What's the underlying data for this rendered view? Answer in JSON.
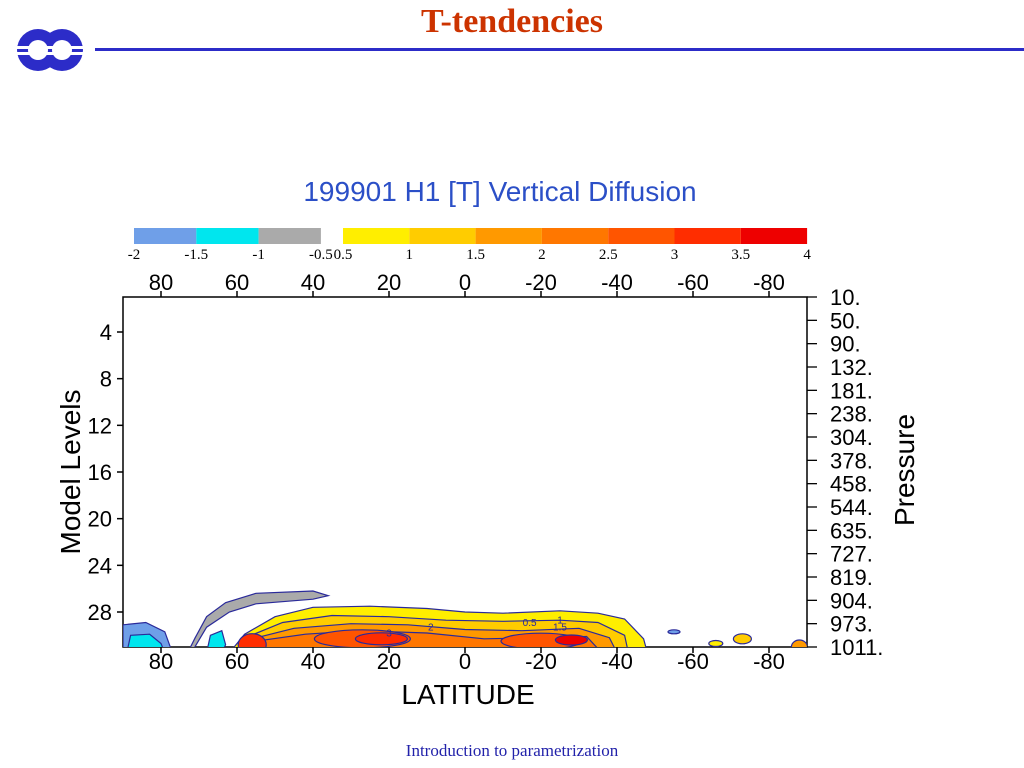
{
  "slide": {
    "title": "T-tendencies",
    "footer": "Introduction to parametrization",
    "logo": "ecmwf-logo"
  },
  "colors": {
    "title": "#cc3300",
    "rule": "#2c2cc8",
    "contour": "#2a2a9a"
  },
  "chart_data": {
    "type": "heatmap",
    "title": "199901 H1  [T] Vertical Diffusion",
    "xlabel": "LATITUDE",
    "ylabel": "Model Levels",
    "y2label": "Pressure",
    "xlim": [
      90,
      -90
    ],
    "ylim": [
      31,
      1
    ],
    "x_ticks": [
      80,
      60,
      40,
      20,
      0,
      -20,
      -40,
      -60,
      -80
    ],
    "x_ticklabels": [
      "80",
      "60",
      "40",
      "20",
      "0",
      "-20",
      "-40",
      "-60",
      "-80"
    ],
    "y_ticks": [
      4,
      8,
      12,
      16,
      20,
      24,
      28
    ],
    "y_ticklabels": [
      "4",
      "8",
      "12",
      "16",
      "20",
      "24",
      "28"
    ],
    "pressure_levels": [
      1,
      3,
      5,
      7,
      9,
      11,
      13,
      15,
      17,
      19,
      21,
      23,
      25,
      27,
      29,
      31
    ],
    "pressure_labels": [
      "10.",
      "50.",
      "90.",
      "132.",
      "181.",
      "238.",
      "304.",
      "378.",
      "458.",
      "544.",
      "635.",
      "727.",
      "819.",
      "904.",
      "973.",
      "1011."
    ],
    "colorbar": {
      "neg_labels": [
        "-2",
        "-1.5",
        "-1",
        "-0.5"
      ],
      "neg_colors": [
        "#6f9fe8",
        "#00e6ee",
        "#aaaaaa"
      ],
      "pos_labels": [
        "0.5",
        "1",
        "1.5",
        "2",
        "2.5",
        "3",
        "3.5",
        "4"
      ],
      "pos_colors": [
        "#ffee00",
        "#ffcc00",
        "#ff9900",
        "#ff7700",
        "#ff5500",
        "#ff2d00",
        "#ee0000"
      ]
    },
    "contour_labels": [
      "0.5",
      "1",
      "1.5",
      "2",
      "3"
    ],
    "grid": false
  }
}
